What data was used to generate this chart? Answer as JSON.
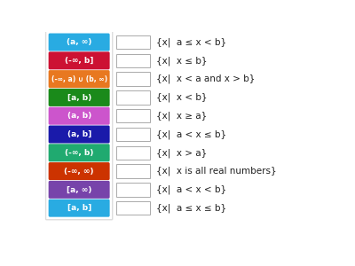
{
  "background_color": "#ffffff",
  "outer_border_color": "#dddddd",
  "left_items": [
    {
      "label": "(a, ∞)",
      "color": "#29abe2"
    },
    {
      "label": "(-∞, b]",
      "color": "#cc1133"
    },
    {
      "label": "(-∞, a) ∪ (b, ∞)",
      "color": "#e87820"
    },
    {
      "label": "[a, b)",
      "color": "#1a8a1a"
    },
    {
      "label": "(a, b)",
      "color": "#cc55cc"
    },
    {
      "label": "(a, b]",
      "color": "#1a1aaa"
    },
    {
      "label": "(-∞, b)",
      "color": "#20aa70"
    },
    {
      "label": "(-∞, ∞)",
      "color": "#cc3300"
    },
    {
      "label": "[a, ∞)",
      "color": "#7744aa"
    },
    {
      "label": "[a, b]",
      "color": "#29abe2"
    }
  ],
  "right_items": [
    "{x|  a ≤ x < b}",
    "{x|  x ≤ b}",
    "{x|  x < a and x > b}",
    "{x|  x < b}",
    "{x|  x ≥ a}",
    "{x|  a < x ≤ b}",
    "{x|  x > a}",
    "{x|  x is all real numbers}",
    "{x|  a < x < b}",
    "{x|  a ≤ x ≤ b}"
  ]
}
